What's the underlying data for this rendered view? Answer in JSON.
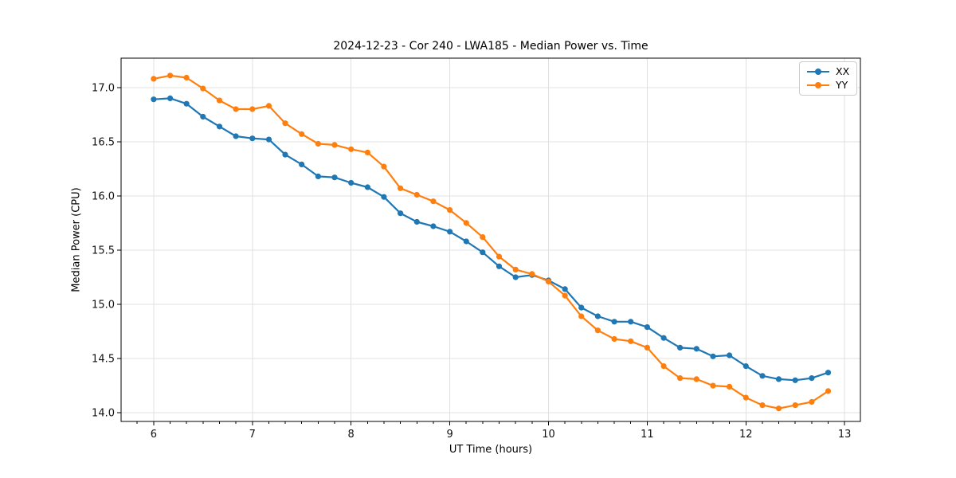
{
  "figure": {
    "title": "2024-12-23 - Cor 240 - LWA185 - Median Power vs. Time"
  },
  "chart_data": {
    "type": "line",
    "title": "2024-12-23 - Cor 240 - LWA185 - Median Power vs. Time",
    "xlabel": "UT Time (hours)",
    "ylabel": "Median Power (CPU)",
    "xlim": [
      5.67,
      13.16
    ],
    "ylim": [
      13.92,
      17.27
    ],
    "xticks": [
      6,
      7,
      8,
      9,
      10,
      11,
      12,
      13
    ],
    "yticks": [
      14.0,
      14.5,
      15.0,
      15.5,
      16.0,
      16.5,
      17.0
    ],
    "x_minor_tick_step": 0.166667,
    "grid": "major",
    "grid_color": "#e0e0e0",
    "legend_position": "upper right",
    "x": [
      6.0,
      6.167,
      6.333,
      6.5,
      6.667,
      6.833,
      7.0,
      7.167,
      7.333,
      7.5,
      7.667,
      7.833,
      8.0,
      8.167,
      8.333,
      8.5,
      8.667,
      8.833,
      9.0,
      9.167,
      9.333,
      9.5,
      9.667,
      9.833,
      10.0,
      10.167,
      10.333,
      10.5,
      10.667,
      10.833,
      11.0,
      11.167,
      11.333,
      11.5,
      11.667,
      11.833,
      12.0,
      12.167,
      12.333,
      12.5,
      12.667,
      12.833
    ],
    "series": [
      {
        "name": "XX",
        "color": "#1f77b4",
        "values": [
          16.89,
          16.9,
          16.85,
          16.73,
          16.64,
          16.55,
          16.53,
          16.52,
          16.38,
          16.29,
          16.18,
          16.17,
          16.12,
          16.08,
          15.99,
          15.84,
          15.76,
          15.72,
          15.67,
          15.58,
          15.48,
          15.35,
          15.25,
          15.27,
          15.22,
          15.14,
          14.97,
          14.89,
          14.84,
          14.84,
          14.79,
          14.69,
          14.6,
          14.59,
          14.52,
          14.53,
          14.43,
          14.34,
          14.31,
          14.3,
          14.32,
          14.37
        ]
      },
      {
        "name": "YY",
        "color": "#ff7f0e",
        "values": [
          17.08,
          17.11,
          17.09,
          16.99,
          16.88,
          16.8,
          16.8,
          16.83,
          16.67,
          16.57,
          16.48,
          16.47,
          16.43,
          16.4,
          16.27,
          16.07,
          16.01,
          15.95,
          15.87,
          15.75,
          15.62,
          15.44,
          15.32,
          15.28,
          15.21,
          15.08,
          14.89,
          14.76,
          14.68,
          14.66,
          14.6,
          14.43,
          14.32,
          14.31,
          14.25,
          14.24,
          14.14,
          14.07,
          14.04,
          14.07,
          14.1,
          14.2
        ]
      }
    ]
  }
}
